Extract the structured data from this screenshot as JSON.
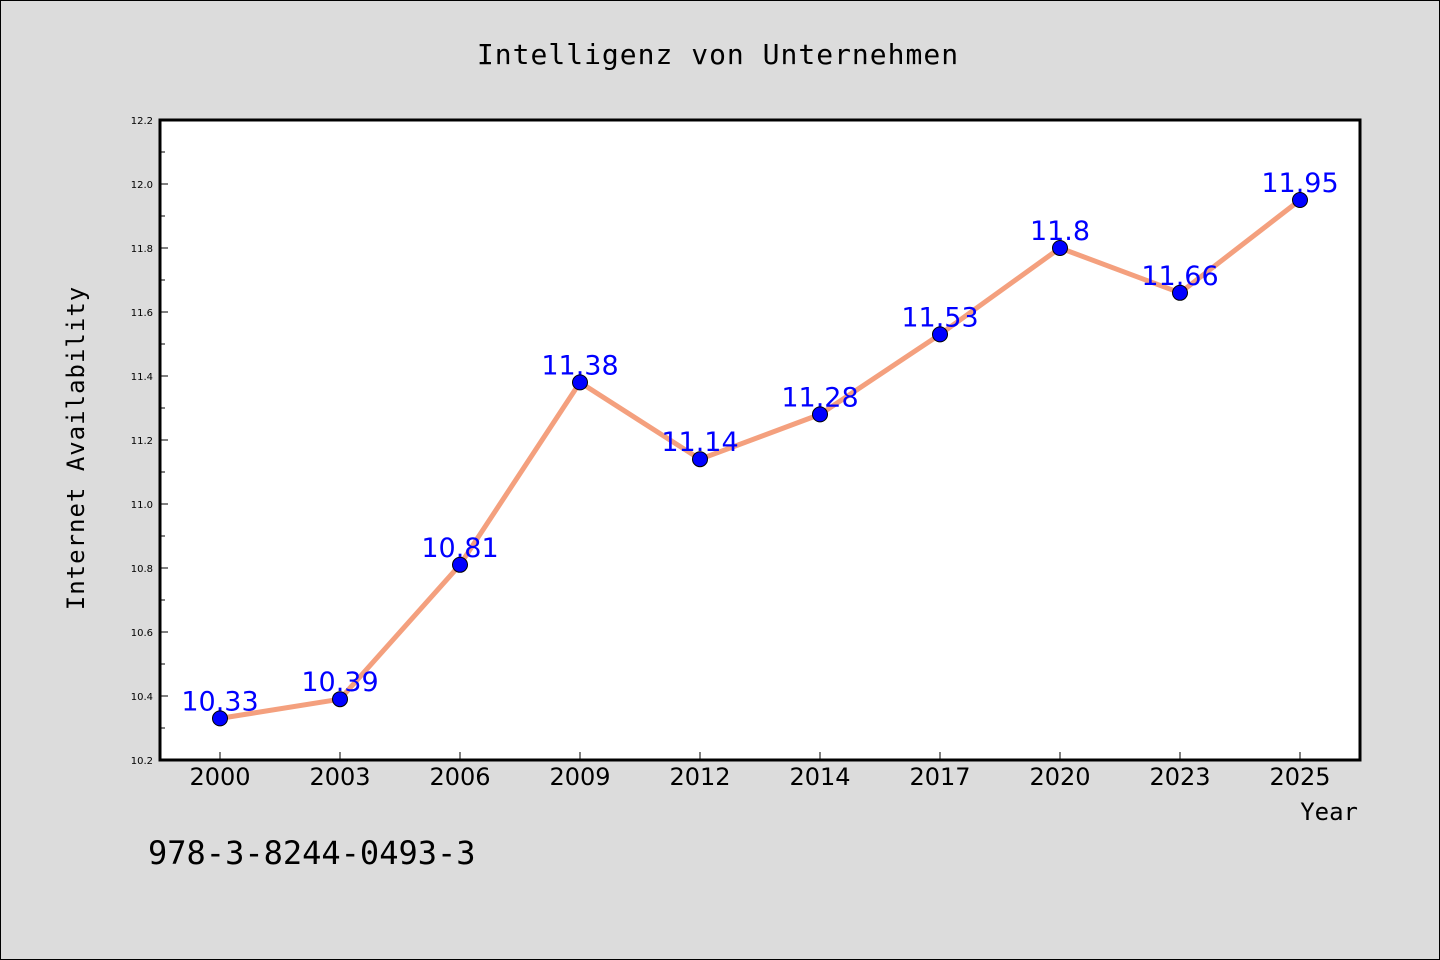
{
  "chart_data": {
    "type": "line",
    "title": "Intelligenz von Unternehmen",
    "xlabel": "Year",
    "ylabel": "Internet Availability",
    "categories": [
      "2000",
      "2003",
      "2006",
      "2009",
      "2012",
      "2014",
      "2017",
      "2020",
      "2023",
      "2025"
    ],
    "series": [
      {
        "values": [
          10.33,
          10.39,
          10.81,
          11.38,
          11.14,
          11.28,
          11.53,
          11.8,
          11.66,
          11.95
        ]
      }
    ],
    "data_labels": [
      "10.33",
      "10.39",
      "10.81",
      "11.38",
      "11.14",
      "11.28",
      "11.53",
      "11.8",
      "11.66",
      "11.95"
    ],
    "ylim": [
      10.2,
      12.2
    ],
    "yticks": [
      "10.2",
      "10.4",
      "10.6",
      "10.8",
      "11.0",
      "11.2",
      "11.4",
      "11.6",
      "11.8",
      "12.0",
      "12.2"
    ],
    "grid": false,
    "line_color": "#f4a07e",
    "marker_color": "#0000ff",
    "label_color": "#0000ff"
  },
  "footer": {
    "isbn": "978-3-8244-0493-3"
  }
}
